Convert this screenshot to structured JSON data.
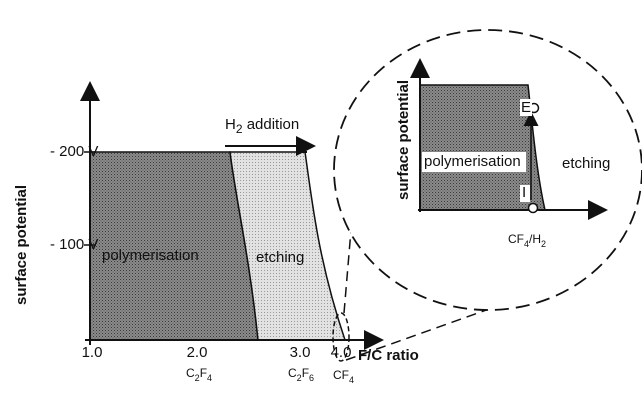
{
  "main": {
    "y_axis_label": "surface potential",
    "y_labels": [
      "- 200 V",
      "- 100 V"
    ],
    "x_axis_label": "F/C ratio",
    "x_labels": [
      "1.0",
      "2.0",
      "3.0",
      "4.0"
    ],
    "x_formulas": [
      {
        "parts": [
          "C",
          "2",
          "F",
          "4"
        ]
      },
      {
        "parts": [
          "C",
          "2",
          "F",
          "6"
        ]
      },
      {
        "parts": [
          "CF",
          "4"
        ]
      }
    ],
    "arrow_label": {
      "parts": [
        "H",
        "2",
        " addition"
      ]
    },
    "region_left": "polymerisation",
    "region_right": "etching"
  },
  "inset": {
    "y_axis_label": "surface potential",
    "region_left": "polymerisation",
    "region_right": "etching",
    "point_top": "E",
    "point_bottom": "I",
    "x_label": {
      "parts": [
        "CF",
        "4",
        "/H",
        "2"
      ]
    }
  }
}
